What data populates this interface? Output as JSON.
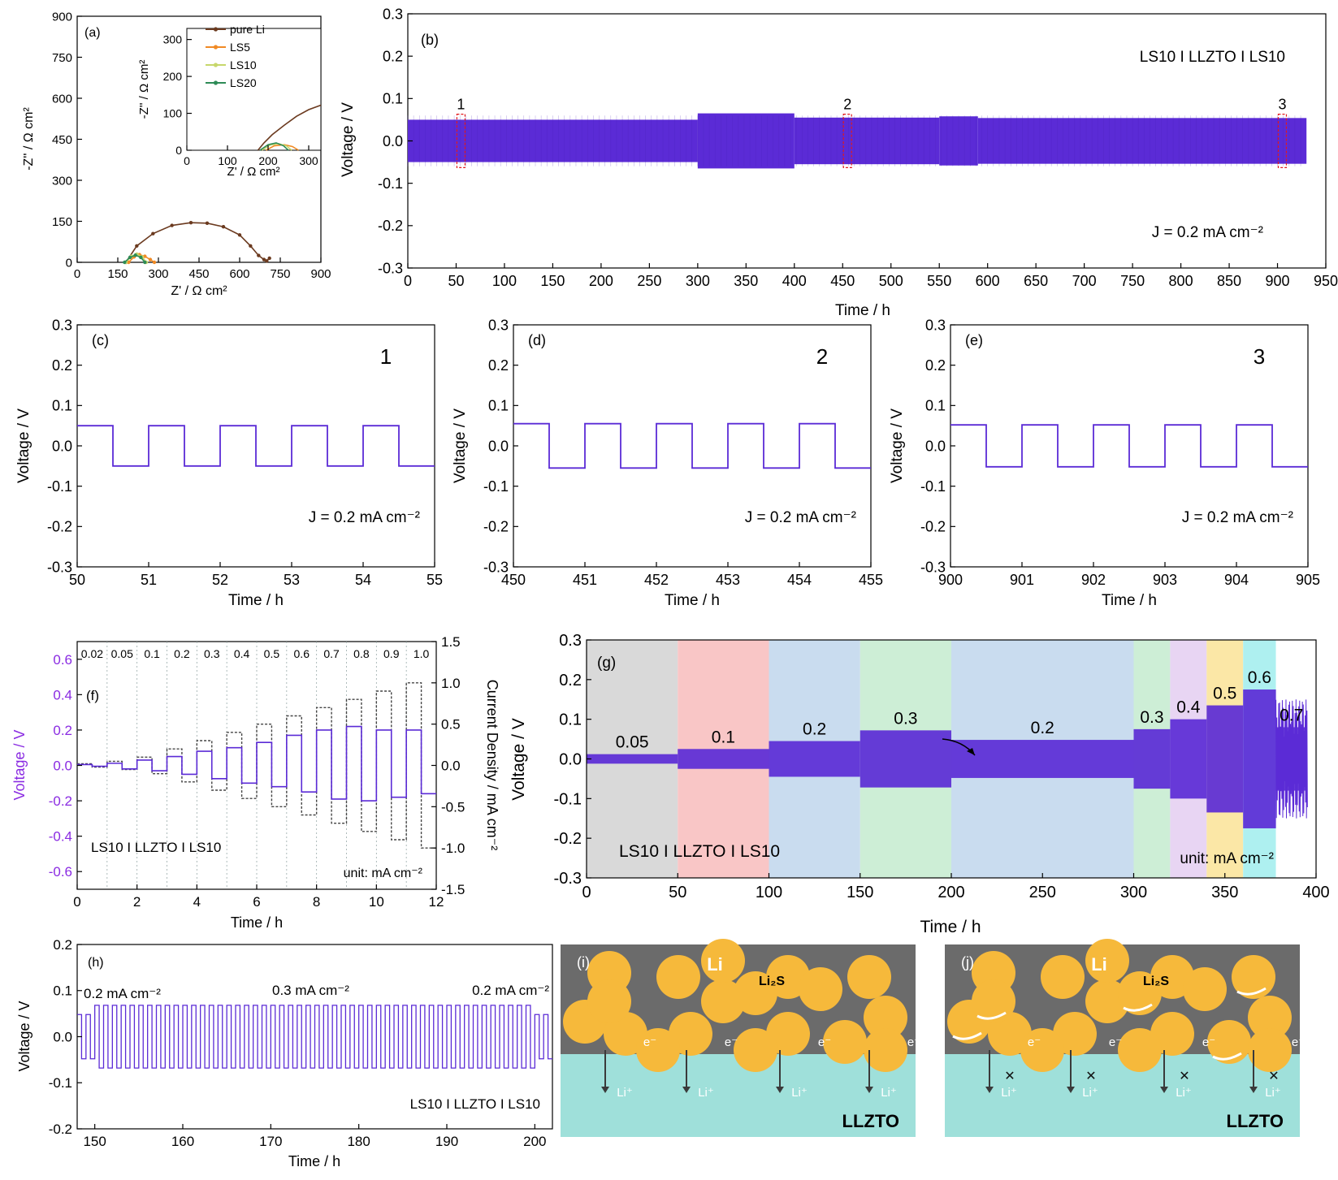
{
  "colors": {
    "trace": "#5b2bd6",
    "trace_dark": "#4a1fb8",
    "box_red": "#e31a1c",
    "particle": "#f6b93b",
    "li_metal": "#6b6b6b",
    "llzto": "#9fe0da",
    "dotted": "#444444",
    "purple_axis": "#8a2be2"
  },
  "chart_data": [
    {
      "id": "a",
      "type": "line",
      "panel_label": "(a)",
      "xlabel": "Z' / Ω cm²",
      "ylabel": "-Z'' / Ω cm²",
      "xlim": [
        0,
        900
      ],
      "ylim": [
        0,
        900
      ],
      "xticks": [
        "0",
        "150",
        "300",
        "450",
        "600",
        "750",
        "900"
      ],
      "yticks": [
        "0",
        "150",
        "300",
        "450",
        "600",
        "750",
        "900"
      ],
      "series": [
        {
          "name": "pure Li",
          "color": "#6b3a1f",
          "x": [
            180,
            220,
            280,
            350,
            420,
            480,
            540,
            600,
            640,
            670,
            690,
            700,
            710
          ],
          "y": [
            0,
            60,
            105,
            135,
            145,
            143,
            130,
            100,
            60,
            25,
            10,
            5,
            15
          ]
        },
        {
          "name": "LS5",
          "color": "#f08a24",
          "x": [
            190,
            210,
            230,
            250,
            270,
            285
          ],
          "y": [
            0,
            20,
            28,
            22,
            10,
            0
          ]
        },
        {
          "name": "LS10",
          "color": "#c7d76b",
          "x": [
            180,
            200,
            220,
            240,
            255
          ],
          "y": [
            0,
            22,
            30,
            20,
            0
          ]
        },
        {
          "name": "LS20",
          "color": "#2e8b57",
          "x": [
            175,
            195,
            215,
            235,
            250
          ],
          "y": [
            0,
            18,
            26,
            18,
            0
          ]
        }
      ],
      "inset": {
        "xlabel": "Z' / Ω cm²",
        "ylabel": "-Z'' / Ω cm²",
        "xlim": [
          0,
          330
        ],
        "ylim": [
          0,
          330
        ],
        "xticks": [
          "0",
          "100",
          "200",
          "300"
        ],
        "yticks": [
          "0",
          "100",
          "200",
          "300"
        ],
        "legend": [
          "pure Li",
          "LS5",
          "LS10",
          "LS20"
        ]
      }
    },
    {
      "id": "b",
      "type": "line",
      "panel_label": "(b)",
      "annotation": "LS10 I LLZTO I LS10",
      "current_label": "J = 0.2 mA cm⁻²",
      "xlabel": "Time / h",
      "ylabel": "Voltage / V",
      "xlim": [
        0,
        950
      ],
      "ylim": [
        -0.3,
        0.3
      ],
      "xticks": [
        "0",
        "50",
        "100",
        "150",
        "200",
        "250",
        "300",
        "350",
        "400",
        "450",
        "500",
        "550",
        "600",
        "650",
        "700",
        "750",
        "800",
        "850",
        "900",
        "950"
      ],
      "yticks": [
        "-0.3",
        "-0.2",
        "-0.1",
        "0.0",
        "0.1",
        "0.2",
        "0.3"
      ],
      "envelope": [
        {
          "x0": 0,
          "x1": 300,
          "amp": 0.05
        },
        {
          "x0": 300,
          "x1": 400,
          "amp": 0.065
        },
        {
          "x0": 400,
          "x1": 550,
          "amp": 0.055
        },
        {
          "x0": 550,
          "x1": 590,
          "amp": 0.058
        },
        {
          "x0": 590,
          "x1": 930,
          "amp": 0.054
        }
      ],
      "markers": [
        {
          "label": "1",
          "x": 55
        },
        {
          "label": "2",
          "x": 455
        },
        {
          "label": "3",
          "x": 905
        }
      ]
    },
    {
      "id": "c",
      "type": "line",
      "panel_label": "(c)",
      "marker": "1",
      "current_label": "J = 0.2 mA cm⁻²",
      "xlabel": "Time / h",
      "ylabel": "Voltage / V",
      "xlim": [
        50,
        55
      ],
      "ylim": [
        -0.3,
        0.3
      ],
      "xticks": [
        "50",
        "51",
        "52",
        "53",
        "54",
        "55"
      ],
      "yticks": [
        "-0.3",
        "-0.2",
        "-0.1",
        "0.0",
        "0.1",
        "0.2",
        "0.3"
      ],
      "amplitude": 0.05
    },
    {
      "id": "d",
      "type": "line",
      "panel_label": "(d)",
      "marker": "2",
      "current_label": "J = 0.2 mA cm⁻²",
      "xlabel": "Time / h",
      "ylabel": "Voltage / V",
      "xlim": [
        450,
        455
      ],
      "ylim": [
        -0.3,
        0.3
      ],
      "xticks": [
        "450",
        "451",
        "452",
        "453",
        "454",
        "455"
      ],
      "yticks": [
        "-0.3",
        "-0.2",
        "-0.1",
        "0.0",
        "0.1",
        "0.2",
        "0.3"
      ],
      "amplitude": 0.055
    },
    {
      "id": "e",
      "type": "line",
      "panel_label": "(e)",
      "marker": "3",
      "current_label": "J = 0.2 mA cm⁻²",
      "xlabel": "Time / h",
      "ylabel": "Voltage / V",
      "xlim": [
        900,
        905
      ],
      "ylim": [
        -0.3,
        0.3
      ],
      "xticks": [
        "900",
        "901",
        "902",
        "903",
        "904",
        "905"
      ],
      "yticks": [
        "-0.3",
        "-0.2",
        "-0.1",
        "0.0",
        "0.1",
        "0.2",
        "0.3"
      ],
      "amplitude": 0.052
    },
    {
      "id": "f",
      "type": "line",
      "panel_label": "(f)",
      "annotation": "LS10 I LLZTO I LS10",
      "unit_label": "unit: mA cm⁻²",
      "xlabel": "Time / h",
      "ylabel": "Voltage / V",
      "ylabel_right": "Current Density / mA cm⁻²",
      "xlim": [
        0,
        12
      ],
      "ylim": [
        -0.7,
        0.7
      ],
      "ylim_right": [
        -1.5,
        1.5
      ],
      "xticks": [
        "0",
        "2",
        "4",
        "6",
        "8",
        "10",
        "12"
      ],
      "yticks": [
        "-0.6",
        "-0.4",
        "-0.2",
        "0.0",
        "0.2",
        "0.4",
        "0.6"
      ],
      "yticks_right": [
        "-1.5",
        "-1.0",
        "-0.5",
        "0.0",
        "0.5",
        "1.0",
        "1.5"
      ],
      "steps": [
        "0.02",
        "0.05",
        "0.1",
        "0.2",
        "0.3",
        "0.4",
        "0.5",
        "0.6",
        "0.7",
        "0.8",
        "0.9",
        "1.0"
      ],
      "voltage_pos": [
        0.005,
        0.012,
        0.03,
        0.05,
        0.08,
        0.1,
        0.13,
        0.17,
        0.2,
        0.22,
        0.2,
        0.2
      ],
      "voltage_neg": [
        -0.005,
        -0.02,
        -0.03,
        -0.05,
        -0.075,
        -0.1,
        -0.12,
        -0.15,
        -0.19,
        -0.2,
        -0.18,
        -0.16
      ]
    },
    {
      "id": "g",
      "type": "line",
      "panel_label": "(g)",
      "annotation": "LS10 I LLZTO I LS10",
      "unit_label": "unit: mA cm⁻²",
      "xlabel": "Time / h",
      "ylabel": "Voltage / V",
      "xlim": [
        0,
        400
      ],
      "ylim": [
        -0.3,
        0.3
      ],
      "xticks": [
        "0",
        "50",
        "100",
        "150",
        "200",
        "250",
        "300",
        "350",
        "400"
      ],
      "yticks": [
        "-0.3",
        "-0.2",
        "-0.1",
        "0.0",
        "0.1",
        "0.2",
        "0.3"
      ],
      "segments": [
        {
          "x0": 0,
          "x1": 50,
          "label": "0.05",
          "bg": "#d9d9d9",
          "amp": 0.012
        },
        {
          "x0": 50,
          "x1": 100,
          "label": "0.1",
          "bg": "#f9c6c6",
          "amp": 0.025
        },
        {
          "x0": 100,
          "x1": 150,
          "label": "0.2",
          "bg": "#c9dcef",
          "amp": 0.045
        },
        {
          "x0": 150,
          "x1": 200,
          "label": "0.3",
          "bg": "#cdeed6",
          "amp": 0.072
        },
        {
          "x0": 200,
          "x1": 300,
          "label": "0.2",
          "bg": "#c9dcef",
          "amp": 0.048
        },
        {
          "x0": 300,
          "x1": 320,
          "label": "0.3",
          "bg": "#cdeed6",
          "amp": 0.075
        },
        {
          "x0": 320,
          "x1": 340,
          "label": "0.4",
          "bg": "#e8d5f3",
          "amp": 0.1
        },
        {
          "x0": 340,
          "x1": 360,
          "label": "0.5",
          "bg": "#fbe7a6",
          "amp": 0.135
        },
        {
          "x0": 360,
          "x1": 378,
          "label": "0.6",
          "bg": "#aef0f0",
          "amp": 0.175
        },
        {
          "x0": 378,
          "x1": 395,
          "label": "0.7",
          "bg": "#ffffff",
          "amp": 0.08
        }
      ]
    },
    {
      "id": "h",
      "type": "line",
      "panel_label": "(h)",
      "annotation": "LS10 I LLZTO I LS10",
      "xlabel": "Time / h",
      "ylabel": "Voltage / V",
      "xlim": [
        148,
        202
      ],
      "ylim": [
        -0.2,
        0.2
      ],
      "xticks": [
        "150",
        "160",
        "170",
        "180",
        "190",
        "200"
      ],
      "yticks": [
        "-0.2",
        "-0.1",
        "0.0",
        "0.1",
        "0.2"
      ],
      "labels": [
        "0.2 mA cm⁻²",
        "0.3 mA cm⁻²",
        "0.2 mA cm⁻²"
      ],
      "low_amp": 0.048,
      "high_amp": 0.068,
      "switch_on": 150,
      "switch_off": 200
    }
  ],
  "schematics": [
    {
      "id": "i",
      "panel_label": "(i)",
      "metal": "Li",
      "compound": "Li₂S",
      "electron": "e⁻",
      "ion": "Li⁺",
      "electrolyte": "LLZTO"
    },
    {
      "id": "j",
      "panel_label": "(j)",
      "metal": "Li",
      "compound": "Li₂S",
      "electron": "e⁻",
      "ion": "Li⁺",
      "electrolyte": "LLZTO"
    }
  ]
}
